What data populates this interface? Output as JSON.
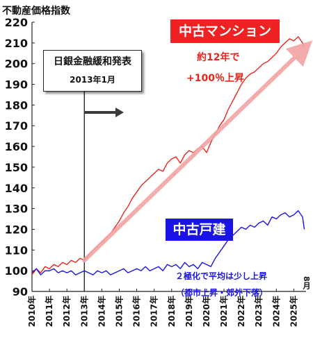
{
  "chart_data": {
    "type": "line",
    "title": "不動産価格指数",
    "ylim": [
      90,
      220
    ],
    "yticks": [
      90,
      100,
      110,
      120,
      130,
      140,
      150,
      160,
      170,
      180,
      190,
      200,
      210,
      220
    ],
    "xlim": [
      2010,
      2025.7
    ],
    "xtick_labels": [
      "2010年",
      "2011年",
      "2012年",
      "2013年",
      "2014年",
      "2015年",
      "2016年",
      "2017年",
      "2018年",
      "2019年",
      "2020年",
      "2021年",
      "2022年",
      "2023年",
      "2024年",
      "2025年"
    ],
    "last_month_label": "8月",
    "grid": false,
    "series": [
      {
        "name": "中古マンション",
        "color": "#e8251f",
        "x": [
          2010.0,
          2010.25,
          2010.5,
          2010.75,
          2011.0,
          2011.25,
          2011.5,
          2011.75,
          2012.0,
          2012.25,
          2012.5,
          2012.75,
          2013.0,
          2013.25,
          2013.5,
          2013.75,
          2014.0,
          2014.25,
          2014.5,
          2014.75,
          2015.0,
          2015.25,
          2015.5,
          2015.75,
          2016.0,
          2016.25,
          2016.5,
          2016.75,
          2017.0,
          2017.25,
          2017.5,
          2017.75,
          2018.0,
          2018.25,
          2018.5,
          2018.75,
          2019.0,
          2019.25,
          2019.5,
          2019.75,
          2020.0,
          2020.25,
          2020.5,
          2020.75,
          2021.0,
          2021.25,
          2021.5,
          2021.75,
          2022.0,
          2022.25,
          2022.5,
          2022.75,
          2023.0,
          2023.25,
          2023.5,
          2023.75,
          2024.0,
          2024.25,
          2024.5,
          2024.75,
          2025.0,
          2025.25,
          2025.5,
          2025.6
        ],
        "values": [
          98,
          101,
          99,
          102,
          101,
          103,
          102,
          104,
          103,
          105,
          104,
          106,
          105,
          108,
          110,
          112,
          114,
          116,
          118,
          121,
          124,
          128,
          131,
          135,
          138,
          141,
          143,
          145,
          147,
          149,
          148,
          152,
          154,
          155,
          152,
          156,
          158,
          157,
          159,
          160,
          157,
          162,
          166,
          170,
          173,
          178,
          182,
          186,
          190,
          193,
          195,
          196,
          198,
          200,
          201,
          203,
          205,
          208,
          210,
          212,
          211,
          213,
          210,
          208
        ]
      },
      {
        "name": "中古戸建",
        "color": "#1a14e6",
        "x": [
          2010.0,
          2010.25,
          2010.5,
          2010.75,
          2011.0,
          2011.25,
          2011.5,
          2011.75,
          2012.0,
          2012.25,
          2012.5,
          2012.75,
          2013.0,
          2013.25,
          2013.5,
          2013.75,
          2014.0,
          2014.25,
          2014.5,
          2014.75,
          2015.0,
          2015.25,
          2015.5,
          2015.75,
          2016.0,
          2016.25,
          2016.5,
          2016.75,
          2017.0,
          2017.25,
          2017.5,
          2017.75,
          2018.0,
          2018.25,
          2018.5,
          2018.75,
          2019.0,
          2019.25,
          2019.5,
          2019.75,
          2020.0,
          2020.25,
          2020.5,
          2020.75,
          2021.0,
          2021.25,
          2021.5,
          2021.75,
          2022.0,
          2022.25,
          2022.5,
          2022.75,
          2023.0,
          2023.25,
          2023.5,
          2023.75,
          2024.0,
          2024.25,
          2024.5,
          2024.75,
          2025.0,
          2025.25,
          2025.5,
          2025.6
        ],
        "values": [
          99,
          101,
          98,
          100,
          100,
          101,
          99,
          100,
          99,
          100,
          98,
          99,
          100,
          99,
          98,
          100,
          99,
          100,
          98,
          99,
          100,
          101,
          99,
          100,
          101,
          100,
          102,
          100,
          101,
          102,
          100,
          103,
          102,
          103,
          101,
          104,
          102,
          103,
          101,
          104,
          103,
          102,
          106,
          109,
          112,
          115,
          117,
          119,
          121,
          120,
          122,
          121,
          123,
          124,
          122,
          126,
          125,
          127,
          128,
          126,
          127,
          129,
          126,
          120
        ]
      }
    ],
    "labels": {
      "mansion": "中古マンション",
      "house": "中古戸建",
      "boj_title": "日銀金融緩和発表",
      "boj_date": "2013年1月",
      "annotation_line1": "約12年で",
      "annotation_line2": "+100％上昇",
      "note_line1": "２極化で平均は少し上昇",
      "note_line2": "（都市上昇・郊外下落）"
    },
    "boj_x": 2013.0
  }
}
